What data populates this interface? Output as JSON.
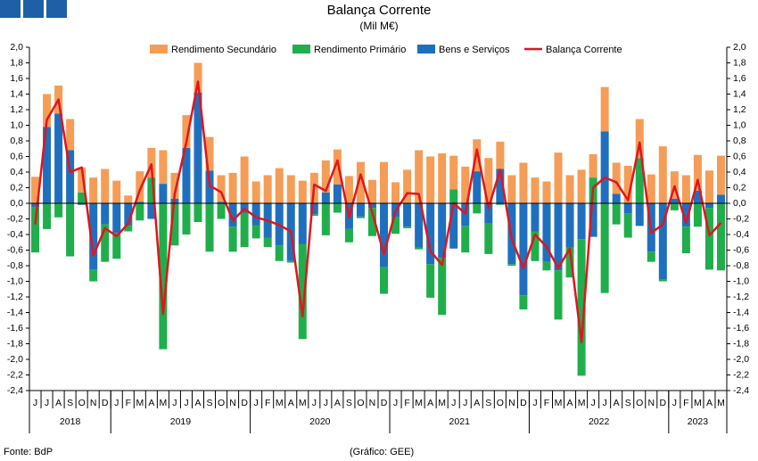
{
  "chart_data": {
    "type": "bar+line",
    "title": "Balança Corrente",
    "subtitle": "(Mil M€)",
    "source": "Fonte: BdP",
    "credit": "(Gráfico: GEE)",
    "categories": [
      "J",
      "J",
      "A",
      "S",
      "O",
      "N",
      "D",
      "J",
      "F",
      "M",
      "A",
      "M",
      "J",
      "J",
      "A",
      "S",
      "O",
      "N",
      "D",
      "J",
      "F",
      "M",
      "A",
      "M",
      "J",
      "J",
      "A",
      "S",
      "O",
      "N",
      "D",
      "J",
      "F",
      "M",
      "A",
      "M",
      "J",
      "J",
      "A",
      "S",
      "O",
      "N",
      "D",
      "J",
      "F",
      "M",
      "A",
      "M",
      "J",
      "J",
      "A",
      "S",
      "O",
      "N",
      "D",
      "J",
      "F",
      "M",
      "A",
      "M"
    ],
    "years": [
      "2018",
      "2019",
      "2020",
      "2021",
      "2022",
      "2023"
    ],
    "series": [
      {
        "name": "Rendimento Secundário",
        "color": "#f59d56",
        "type": "bar",
        "values": [
          0.34,
          0.42,
          0.36,
          0.4,
          0.32,
          0.33,
          0.44,
          0.29,
          0.1,
          0.39,
          0.38,
          0.43,
          0.33,
          0.42,
          0.38,
          0.43,
          0.34,
          0.39,
          0.6,
          0.28,
          0.36,
          0.45,
          0.36,
          0.29,
          0.39,
          0.41,
          0.45,
          0.35,
          0.53,
          0.3,
          0.53,
          0.27,
          0.43,
          0.68,
          0.6,
          0.64,
          0.43,
          0.47,
          0.41,
          0.58,
          0.35,
          0.36,
          0.52,
          0.33,
          0.28,
          0.65,
          0.36,
          0.43,
          0.3,
          0.57,
          0.4,
          0.48,
          0.5,
          0.37,
          0.73,
          0.35,
          0.36,
          0.46,
          0.42,
          0.5
        ]
      },
      {
        "name": "Rendimento Primário",
        "color": "#1fae4b",
        "type": "bar",
        "values": [
          -0.58,
          -0.33,
          -0.18,
          -0.68,
          0.14,
          -0.15,
          -0.48,
          -0.33,
          -0.08,
          -0.22,
          0.33,
          -1.87,
          -0.54,
          -0.4,
          -0.24,
          -0.62,
          -0.2,
          -0.32,
          -0.44,
          -0.17,
          -0.12,
          -0.2,
          -0.02,
          -1.22,
          -0.02,
          -0.41,
          -0.12,
          -0.17,
          -0.02,
          -0.36,
          -0.34,
          -0.21,
          -0.02,
          -0.02,
          -0.43,
          -0.73,
          0.18,
          -0.34,
          -0.13,
          -0.39,
          -0.02,
          -0.02,
          -0.18,
          -0.38,
          -0.11,
          -0.63,
          -0.38,
          -1.75,
          0.33,
          -1.15,
          -0.27,
          -0.31,
          0.58,
          -0.13,
          -0.02,
          -0.09,
          -0.34,
          -0.3,
          -0.79,
          -0.86
        ]
      },
      {
        "name": "Bens e Serviços",
        "color": "#1f6fbf",
        "type": "bar",
        "values": [
          -0.05,
          0.98,
          1.15,
          0.68,
          -0.02,
          -0.85,
          -0.27,
          -0.38,
          -0.28,
          0.02,
          -0.2,
          0.25,
          0.06,
          0.71,
          1.42,
          0.42,
          0.02,
          -0.3,
          -0.12,
          -0.28,
          -0.44,
          -0.54,
          -0.74,
          -0.52,
          -0.14,
          0.14,
          0.24,
          -0.33,
          -0.17,
          -0.06,
          -0.82,
          -0.18,
          -0.3,
          -0.57,
          -0.78,
          -0.7,
          -0.58,
          -0.29,
          0.41,
          -0.26,
          0.44,
          -0.78,
          -1.18,
          -0.36,
          -0.75,
          -0.86,
          -0.57,
          -0.46,
          -0.43,
          0.92,
          0.12,
          -0.13,
          -0.29,
          -0.62,
          -0.98,
          0.06,
          -0.3,
          0.16,
          -0.06,
          0.11
        ]
      },
      {
        "name": "Balança Corrente",
        "color": "#e3141c",
        "type": "line",
        "values": [
          -0.27,
          1.07,
          1.33,
          0.4,
          0.46,
          -0.67,
          -0.32,
          -0.42,
          -0.26,
          0.17,
          0.5,
          -1.42,
          0.12,
          0.78,
          1.56,
          0.23,
          0.14,
          -0.22,
          -0.07,
          -0.18,
          -0.22,
          -0.28,
          -0.36,
          -1.45,
          0.24,
          0.16,
          0.55,
          -0.18,
          0.37,
          -0.12,
          -0.65,
          -0.1,
          0.13,
          0.12,
          -0.61,
          -0.79,
          0.0,
          -0.13,
          0.69,
          -0.06,
          0.43,
          -0.46,
          -0.83,
          -0.4,
          -0.56,
          -0.83,
          -0.58,
          -1.78,
          0.2,
          0.33,
          0.27,
          0.04,
          0.78,
          -0.38,
          -0.27,
          0.22,
          -0.25,
          0.3,
          -0.41,
          -0.25
        ]
      }
    ],
    "ylim": [
      -2.4,
      2.0
    ],
    "yticks": [
      {
        "value": -2.4,
        "label": "-2,4"
      },
      {
        "value": -2.2,
        "label": "-2,2"
      },
      {
        "value": -2.0,
        "label": "-2,0"
      },
      {
        "value": -1.8,
        "label": "-1,8"
      },
      {
        "value": -1.6,
        "label": "-1,6"
      },
      {
        "value": -1.4,
        "label": "-1,4"
      },
      {
        "value": -1.2,
        "label": "-1,2"
      },
      {
        "value": -1.0,
        "label": "-1,0"
      },
      {
        "value": -0.8,
        "label": "-0,8"
      },
      {
        "value": -0.6,
        "label": "-0,6"
      },
      {
        "value": -0.4,
        "label": "-0,4"
      },
      {
        "value": -0.2,
        "label": "-0,2"
      },
      {
        "value": 0,
        "label": "0,0"
      },
      {
        "value": 0.2,
        "label": "0,2"
      },
      {
        "value": 0.4,
        "label": "0,4"
      },
      {
        "value": 0.6,
        "label": "0,6"
      },
      {
        "value": 0.8,
        "label": "0,8"
      },
      {
        "value": 1.0,
        "label": "1,0"
      },
      {
        "value": 1.2,
        "label": "1,2"
      },
      {
        "value": 1.4,
        "label": "1,4"
      },
      {
        "value": 1.6,
        "label": "1,6"
      },
      {
        "value": 1.8,
        "label": "1,8"
      },
      {
        "value": 2.0,
        "label": "2,0"
      }
    ]
  }
}
